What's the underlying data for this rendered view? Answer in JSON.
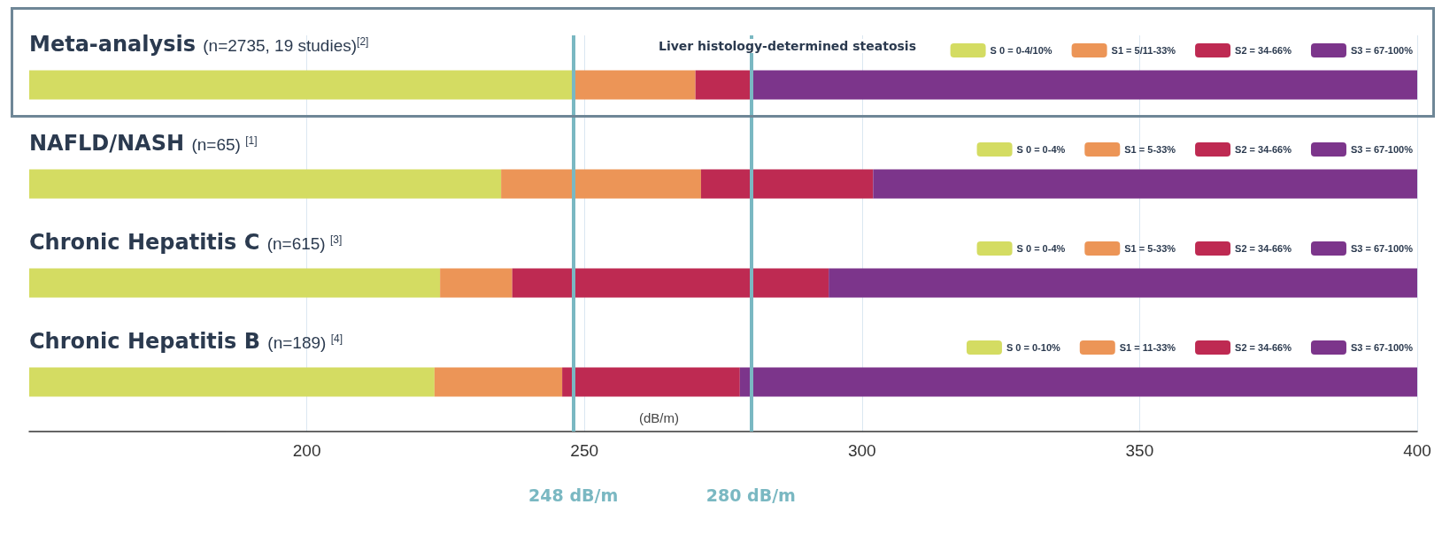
{
  "chart_data": {
    "type": "bar",
    "orientation": "horizontal",
    "legend_title": "Liver histology-determined steatosis",
    "xlabel": "(dB/m)",
    "categories": [
      "Meta-analysis (n=2735, 19 studies)$^{[2]}$",
      "NAFLD/NASH (n=65) $^{[1]}$",
      "Chronic Hepatitis C (n=615) $^{[3]}$",
      "Chronic Hepatitis B (n=189) $^{[4]}$"
    ],
    "series": [
      {
        "name": "S 0 = 0-4/10%",
        "color": "#d4dc62",
        "base": [
          150,
          null,
          null,
          null
        ],
        "values": [
          98,
          null,
          null,
          null
        ]
      },
      {
        "name": "S1 = 5/11-33%",
        "color": "#ec9557",
        "base": [
          248,
          null,
          null,
          null
        ],
        "values": [
          22,
          null,
          null,
          null
        ]
      },
      {
        "name": "S2 = 34-66%",
        "color": "#be2a52",
        "base": [
          270,
          null,
          null,
          null
        ],
        "values": [
          10,
          null,
          null,
          null
        ]
      },
      {
        "name": "S3 = 67-100%",
        "color": "#7c358b",
        "base": [
          280,
          null,
          null,
          null
        ],
        "values": [
          120,
          null,
          null,
          null
        ]
      },
      {
        "name": "S 0 = 0-4%",
        "color": "#d4dc62",
        "base": [
          null,
          150,
          null,
          null
        ],
        "values": [
          null,
          85,
          null,
          null
        ]
      },
      {
        "name": "S1 = 5-33%",
        "color": "#ec9557",
        "base": [
          null,
          235,
          null,
          null
        ],
        "values": [
          null,
          36,
          null,
          null
        ]
      },
      {
        "name": "S2 = 34-66%",
        "color": "#be2a52",
        "base": [
          null,
          271,
          null,
          null
        ],
        "values": [
          null,
          31,
          null,
          null
        ]
      },
      {
        "name": "S3 = 67-100%",
        "color": "#7c358b",
        "base": [
          null,
          302,
          null,
          null
        ],
        "values": [
          null,
          98,
          null,
          null
        ]
      },
      {
        "name": "S 0 = 0-4%",
        "color": "#d4dc62",
        "base": [
          null,
          null,
          150,
          null
        ],
        "values": [
          null,
          null,
          74,
          null
        ]
      },
      {
        "name": "S1 = 5-33%",
        "color": "#ec9557",
        "base": [
          null,
          null,
          224,
          null
        ],
        "values": [
          null,
          null,
          13,
          null
        ]
      },
      {
        "name": "S2 = 34-66%",
        "color": "#be2a52",
        "base": [
          null,
          null,
          237,
          null
        ],
        "values": [
          null,
          null,
          57,
          null
        ]
      },
      {
        "name": "S3 = 67-100%",
        "color": "#7c358b",
        "base": [
          null,
          null,
          294,
          null
        ],
        "values": [
          null,
          null,
          106,
          null
        ]
      },
      {
        "name": "S 0 = 0-10%",
        "color": "#d4dc62",
        "base": [
          null,
          null,
          null,
          150
        ],
        "values": [
          null,
          null,
          null,
          73
        ]
      },
      {
        "name": "S1 = 11-33%",
        "color": "#ec9557",
        "base": [
          null,
          null,
          null,
          223
        ],
        "values": [
          null,
          null,
          null,
          23
        ]
      },
      {
        "name": "S2 = 34-66%",
        "color": "#be2a52",
        "base": [
          null,
          null,
          null,
          246
        ],
        "values": [
          null,
          null,
          null,
          32
        ]
      },
      {
        "name": "S3 = 67-100%",
        "color": "#7c358b",
        "base": [
          null,
          null,
          null,
          278
        ],
        "values": [
          null,
          null,
          null,
          122
        ]
      }
    ],
    "xlim": [
      150,
      400
    ],
    "xticks": [
      200,
      250,
      300,
      350,
      400
    ],
    "grid": "x",
    "legend": "top right",
    "ref_lines": [
      {
        "axis": "x",
        "value": 248,
        "label": "248 dB/m",
        "color": "#7ab8c2"
      },
      {
        "axis": "x",
        "value": 280,
        "label": "280 dB/m",
        "color": "#7ab8c2"
      }
    ]
  }
}
